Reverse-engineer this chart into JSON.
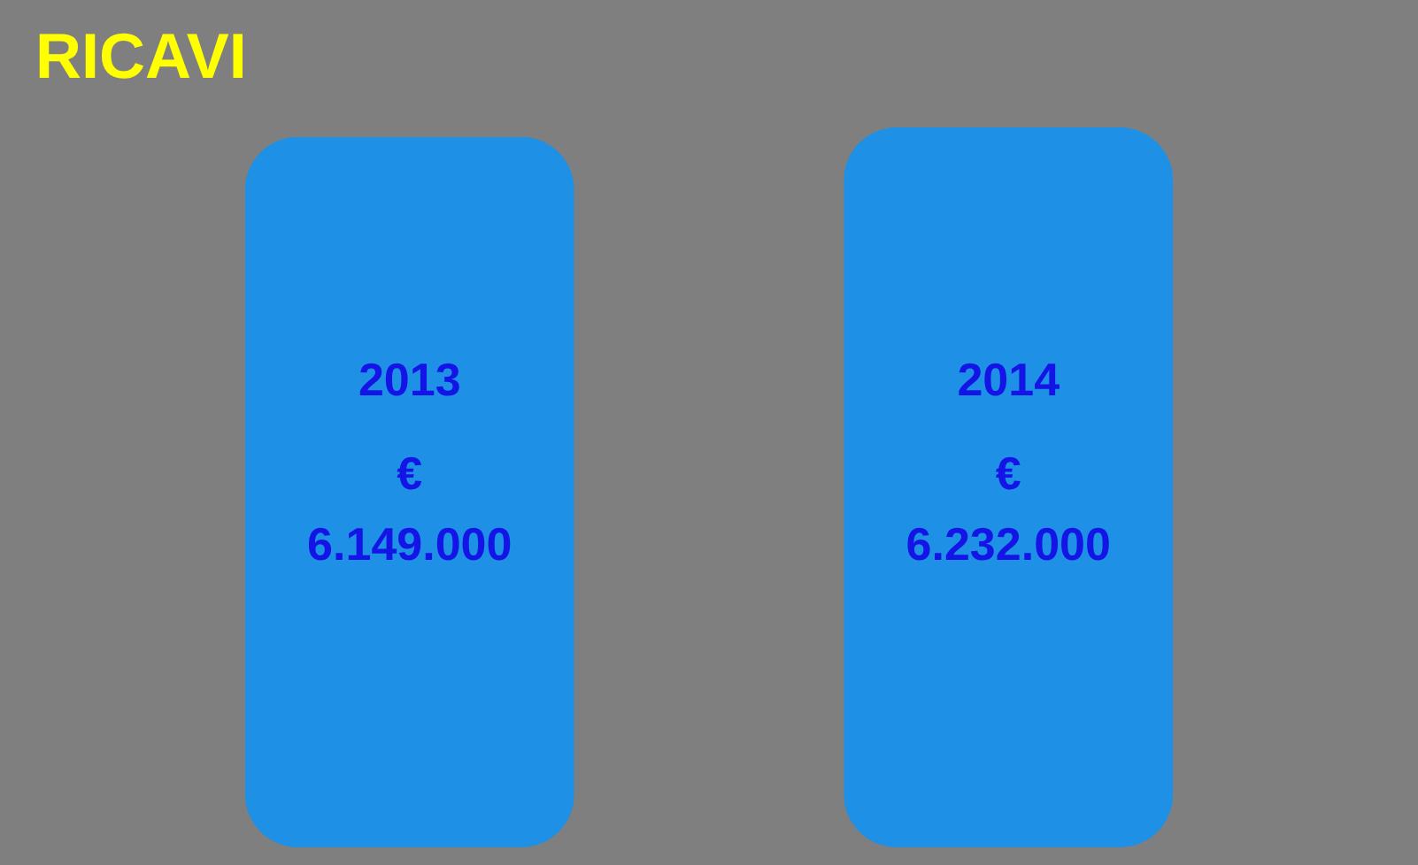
{
  "chart_data": {
    "type": "bar",
    "title": "RICAVI",
    "categories": [
      "2013",
      "2014"
    ],
    "values": [
      6149000,
      6232000
    ],
    "value_labels": [
      "€ 6.149.000",
      "€ 6.232.000"
    ],
    "color": "#1e90e6",
    "tick_labels": false
  }
}
